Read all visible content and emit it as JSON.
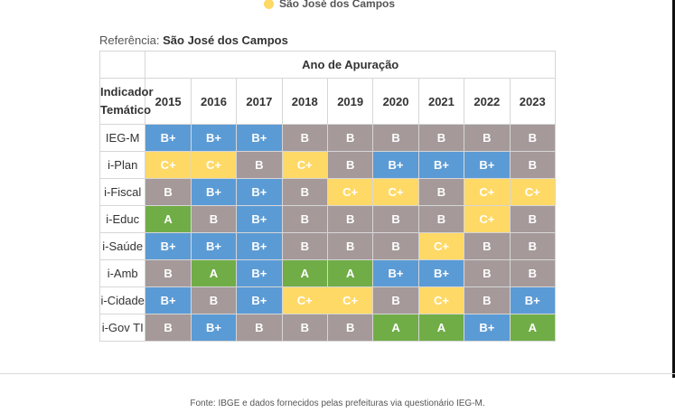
{
  "legend": {
    "label": "São José dos Campos",
    "color": "#ffd966"
  },
  "reference": {
    "label": "Referência:",
    "value": "São José dos Campos"
  },
  "table": {
    "group_header": "Ano de Apuração",
    "row_header": "Indicador Temático",
    "years": [
      "2015",
      "2016",
      "2017",
      "2018",
      "2019",
      "2020",
      "2021",
      "2022",
      "2023"
    ],
    "rows": [
      {
        "indicator": "IEG-M",
        "grades": [
          "B+",
          "B+",
          "B+",
          "B",
          "B",
          "B",
          "B",
          "B",
          "B"
        ]
      },
      {
        "indicator": "i-Plan",
        "grades": [
          "C+",
          "C+",
          "B",
          "C+",
          "B",
          "B+",
          "B+",
          "B+",
          "B"
        ]
      },
      {
        "indicator": "i-Fiscal",
        "grades": [
          "B",
          "B+",
          "B+",
          "B",
          "C+",
          "C+",
          "B",
          "C+",
          "C+"
        ]
      },
      {
        "indicator": "i-Educ",
        "grades": [
          "A",
          "B",
          "B+",
          "B",
          "B",
          "B",
          "B",
          "C+",
          "B"
        ]
      },
      {
        "indicator": "i-Saúde",
        "grades": [
          "B+",
          "B+",
          "B+",
          "B",
          "B",
          "B",
          "C+",
          "B",
          "B"
        ]
      },
      {
        "indicator": "i-Amb",
        "grades": [
          "B",
          "A",
          "B+",
          "A",
          "A",
          "B+",
          "B+",
          "B",
          "B"
        ]
      },
      {
        "indicator": "i-Cidade",
        "grades": [
          "B+",
          "B",
          "B+",
          "C+",
          "C+",
          "B",
          "C+",
          "B",
          "B+"
        ]
      },
      {
        "indicator": "i-Gov TI",
        "grades": [
          "B",
          "B+",
          "B",
          "B",
          "B",
          "A",
          "A",
          "B+",
          "A"
        ]
      }
    ],
    "grade_colors": {
      "A": "#70ad47",
      "B+": "#5b9bd5",
      "B": "#a5999a",
      "C+": "#ffd966"
    }
  },
  "source": "Fonte: IBGE e dados fornecidos pelas prefeituras via questionário IEG-M."
}
